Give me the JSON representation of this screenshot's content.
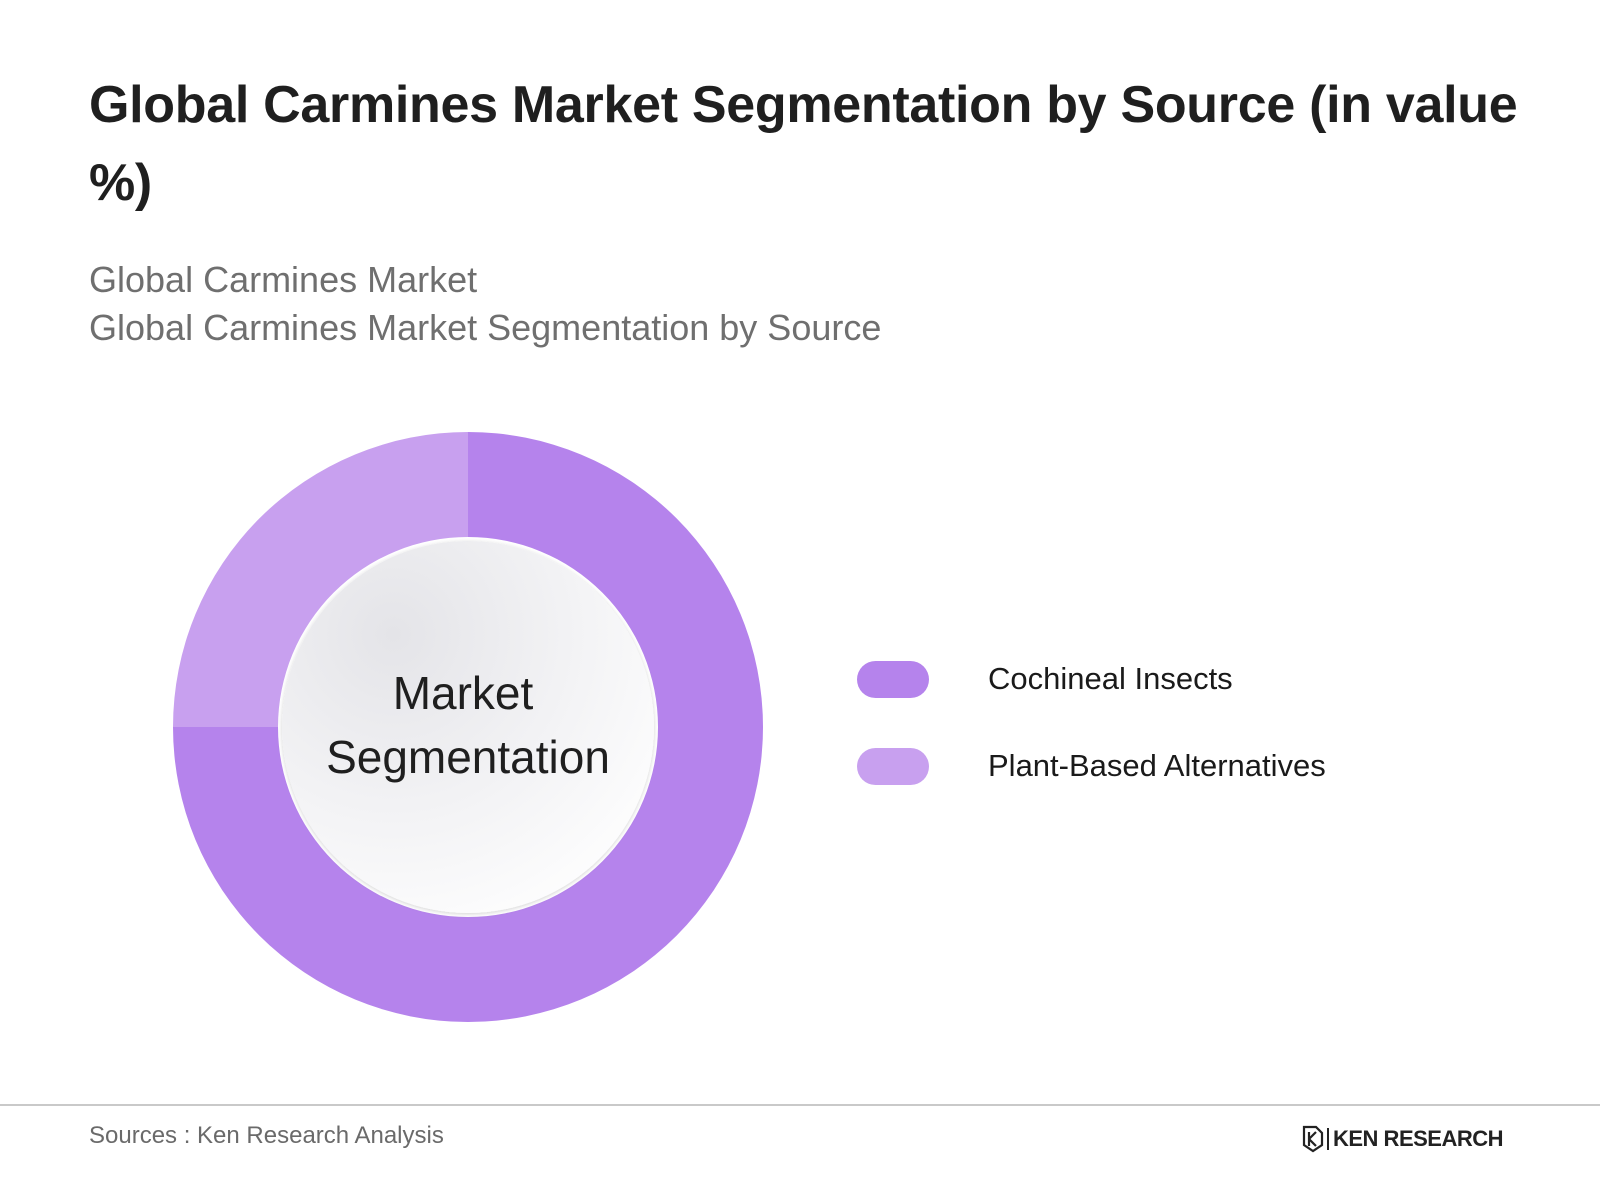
{
  "header": {
    "title": "Global Carmines Market Segmentation by Source (in value %)",
    "subtitle_1": "Global Carmines Market",
    "subtitle_2": "Global Carmines Market Segmentation by Source"
  },
  "chart_data": {
    "type": "pie",
    "variant": "donut",
    "center_label_line1": "Market",
    "center_label_line2": "Segmentation",
    "legend_position": "right",
    "series": [
      {
        "name": "Cochineal Insects",
        "value": 75,
        "color": "#b583ec"
      },
      {
        "name": "Plant-Based Alternatives",
        "value": 25,
        "color": "#c8a0ef"
      }
    ]
  },
  "legend": {
    "items": [
      {
        "label": "Cochineal Insects",
        "color": "#b583ec"
      },
      {
        "label": "Plant-Based Alternatives",
        "color": "#c8a0ef"
      }
    ]
  },
  "footer": {
    "source": "Sources : Ken Research Analysis",
    "brand": "KEN RESEARCH",
    "brand_icon": "ken-research-logo-icon"
  }
}
